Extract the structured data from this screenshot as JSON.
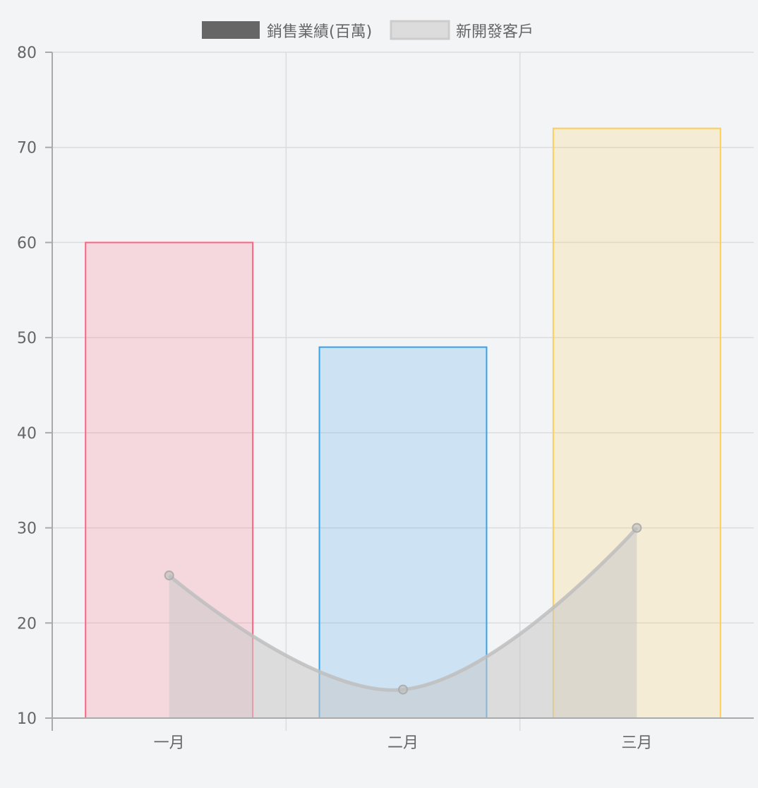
{
  "chart_data": {
    "type": "bar",
    "categories": [
      "一月",
      "二月",
      "三月"
    ],
    "ylim": [
      10,
      80
    ],
    "yticks": [
      10,
      20,
      30,
      40,
      50,
      60,
      70,
      80
    ],
    "grid": true,
    "legend_position": "top",
    "series": [
      {
        "name": "銷售業績(百萬)",
        "type": "bar",
        "values": [
          60,
          49,
          72
        ],
        "legend_color": "#666666",
        "bar_fills": [
          "rgba(255,99,132,0.2)",
          "rgba(54,162,235,0.2)",
          "rgba(255,206,86,0.2)"
        ],
        "bar_borders": [
          "#ff6384",
          "#36a2eb",
          "#ffce56"
        ]
      },
      {
        "name": "新開發客戶",
        "type": "line",
        "values": [
          25,
          13,
          30
        ],
        "fill": "rgba(200,200,200,0.55)",
        "stroke": "rgba(190,190,190,0.85)",
        "legend_fill": "#dcdcdc",
        "legend_border": "#cccccc"
      }
    ]
  }
}
